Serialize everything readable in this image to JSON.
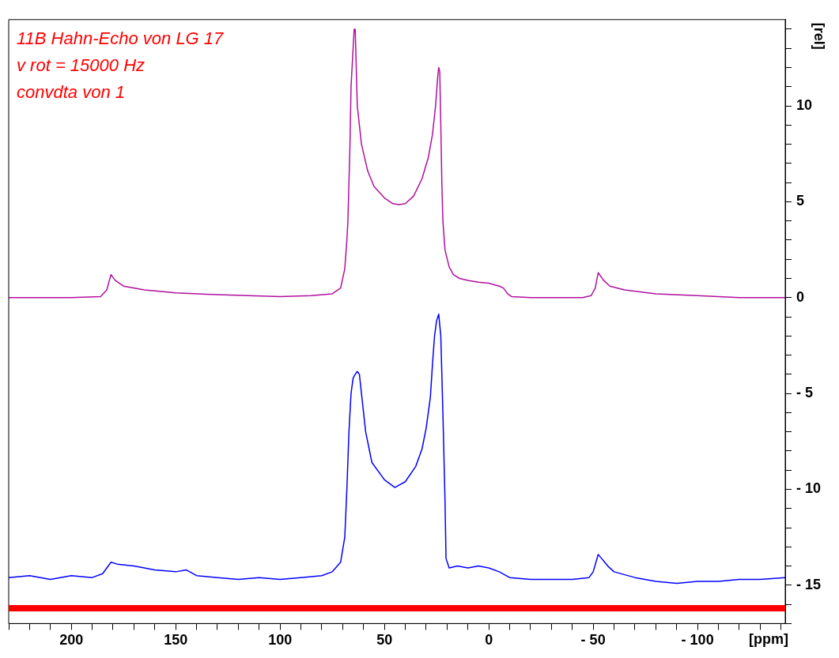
{
  "chart_data": {
    "type": "line",
    "xlabel": "[ppm]",
    "ylabel": "[rel]",
    "annotations": [
      "11B Hahn-Echo von LG 17",
      "v rot = 15000 Hz",
      "convdta von 1"
    ],
    "xlim": [
      230,
      -142
    ],
    "ylim": [
      -17,
      14.5
    ],
    "xticks": [
      {
        "value": 230,
        "label": null
      },
      {
        "value": 220,
        "label": null
      },
      {
        "value": 210,
        "label": null
      },
      200,
      {
        "value": 190,
        "label": null
      },
      {
        "value": 180,
        "label": null
      },
      {
        "value": 170,
        "label": null
      },
      {
        "value": 160,
        "label": null
      },
      150,
      {
        "value": 140,
        "label": null
      },
      {
        "value": 130,
        "label": null
      },
      {
        "value": 120,
        "label": null
      },
      {
        "value": 110,
        "label": null
      },
      100,
      {
        "value": 90,
        "label": null
      },
      {
        "value": 80,
        "label": null
      },
      {
        "value": 70,
        "label": null
      },
      {
        "value": 60,
        "label": null
      },
      50,
      {
        "value": 40,
        "label": null
      },
      {
        "value": 30,
        "label": null
      },
      {
        "value": 20,
        "label": null
      },
      {
        "value": 10,
        "label": null
      },
      0,
      {
        "value": -10,
        "label": null
      },
      {
        "value": -20,
        "label": null
      },
      {
        "value": -30,
        "label": null
      },
      {
        "value": -40,
        "label": null
      },
      {
        "value": -50,
        "label": "- 50"
      },
      {
        "value": -60,
        "label": null
      },
      {
        "value": -70,
        "label": null
      },
      {
        "value": -80,
        "label": null
      },
      {
        "value": -90,
        "label": null
      },
      {
        "value": -100,
        "label": "- 100"
      },
      {
        "value": -110,
        "label": null
      },
      {
        "value": -120,
        "label": null
      },
      {
        "value": -130,
        "label": null
      },
      {
        "value": -140,
        "label": null
      }
    ],
    "yticks": [
      {
        "value": -17,
        "label": null
      },
      {
        "value": -16,
        "label": null
      },
      {
        "value": -15,
        "label": "- 15"
      },
      {
        "value": -14,
        "label": null
      },
      {
        "value": -13,
        "label": null
      },
      {
        "value": -12,
        "label": null
      },
      {
        "value": -11,
        "label": null
      },
      {
        "value": -10,
        "label": "- 10"
      },
      {
        "value": -9,
        "label": null
      },
      {
        "value": -8,
        "label": null
      },
      {
        "value": -7,
        "label": null
      },
      {
        "value": -6,
        "label": null
      },
      {
        "value": -5,
        "label": "- 5"
      },
      {
        "value": -4,
        "label": null
      },
      {
        "value": -3,
        "label": null
      },
      {
        "value": -2,
        "label": null
      },
      {
        "value": -1,
        "label": null
      },
      0,
      {
        "value": 1,
        "label": null
      },
      {
        "value": 2,
        "label": null
      },
      {
        "value": 3,
        "label": null
      },
      {
        "value": 4,
        "label": null
      },
      5,
      {
        "value": 6,
        "label": null
      },
      {
        "value": 7,
        "label": null
      },
      {
        "value": 8,
        "label": null
      },
      {
        "value": 9,
        "label": null
      },
      10,
      {
        "value": 11,
        "label": null
      },
      {
        "value": 12,
        "label": null
      },
      {
        "value": 13,
        "label": null
      },
      {
        "value": 14,
        "label": null
      }
    ],
    "grid": false,
    "legend": false,
    "marker": "none",
    "line_style": "solid",
    "ref_lines": [
      {
        "axis": "y",
        "value": -16.2,
        "color": "#ff0000"
      }
    ],
    "series": [
      {
        "color": "#b0109f",
        "x": [
          230,
          200,
          186,
          183,
          181,
          179,
          175,
          165,
          150,
          130,
          100,
          85,
          75,
          71,
          69,
          68,
          67.5,
          67,
          66.5,
          66,
          65,
          64.5,
          64,
          63.5,
          63,
          61,
          58,
          55,
          50,
          46,
          43,
          40,
          36,
          32,
          29,
          27,
          25.5,
          24.5,
          24,
          23.5,
          23,
          22.5,
          22,
          21,
          19,
          17,
          14,
          10,
          5,
          0,
          -5,
          -7,
          -9,
          -11,
          -20,
          -45,
          -49,
          -51,
          -52.4,
          -55,
          -58,
          -65,
          -80,
          -100,
          -120,
          -142
        ],
        "values": [
          0,
          0,
          0.05,
          0.4,
          1.2,
          0.9,
          0.6,
          0.4,
          0.25,
          0.15,
          0.05,
          0.1,
          0.2,
          0.5,
          1.5,
          3,
          4,
          6,
          8,
          11,
          13,
          14,
          14,
          12,
          10,
          8,
          6.6,
          5.8,
          5.2,
          4.9,
          4.85,
          4.9,
          5.3,
          6.2,
          7.3,
          8.5,
          10,
          11.5,
          12,
          11.8,
          9,
          6,
          4,
          2.5,
          1.6,
          1.2,
          1,
          0.9,
          0.8,
          0.75,
          0.6,
          0.5,
          0.2,
          0.05,
          0,
          0,
          0.1,
          0.5,
          1.3,
          0.9,
          0.6,
          0.4,
          0.2,
          0.1,
          0,
          0
        ]
      },
      {
        "color": "#0000ff",
        "x": [
          230,
          220,
          210,
          200,
          190,
          185,
          183,
          181,
          178,
          170,
          160,
          150,
          145,
          140,
          130,
          120,
          110,
          100,
          90,
          80,
          75,
          71,
          69,
          68,
          67,
          66,
          65,
          64,
          63,
          62,
          61,
          59,
          56,
          50,
          45,
          40,
          35,
          32,
          30,
          28,
          27,
          26,
          25,
          24,
          23,
          22,
          21,
          20.5,
          19,
          15,
          10,
          5,
          0,
          -5,
          -10,
          -20,
          -30,
          -40,
          -48,
          -50,
          -52.4,
          -54,
          -57,
          -60,
          -70,
          -80,
          -90,
          -100,
          -110,
          -120,
          -130,
          -142
        ],
        "values": [
          -14.6,
          -14.5,
          -14.7,
          -14.5,
          -14.6,
          -14.4,
          -14.1,
          -13.8,
          -13.9,
          -14.0,
          -14.2,
          -14.3,
          -14.2,
          -14.5,
          -14.6,
          -14.7,
          -14.6,
          -14.7,
          -14.6,
          -14.5,
          -14.3,
          -13.8,
          -12.5,
          -10,
          -7,
          -5,
          -4.2,
          -4.0,
          -3.85,
          -4.0,
          -5,
          -7,
          -8.6,
          -9.5,
          -9.9,
          -9.6,
          -8.8,
          -7.9,
          -6.8,
          -5.2,
          -3.5,
          -2,
          -1.2,
          -0.86,
          -2,
          -6,
          -10.5,
          -13.6,
          -14.1,
          -14.0,
          -14.1,
          -14.0,
          -14.1,
          -14.3,
          -14.6,
          -14.7,
          -14.7,
          -14.7,
          -14.6,
          -14.3,
          -13.4,
          -13.6,
          -14.0,
          -14.3,
          -14.6,
          -14.8,
          -14.9,
          -14.8,
          -14.8,
          -14.7,
          -14.7,
          -14.6
        ]
      }
    ]
  }
}
